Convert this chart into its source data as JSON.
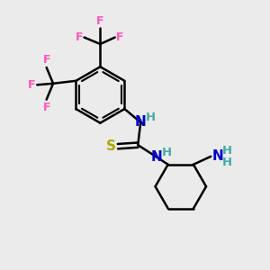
{
  "bg_color": "#ebebeb",
  "bond_color": "#000000",
  "bond_width": 1.8,
  "N_color": "#0000cc",
  "S_color": "#aaaa00",
  "F_color": "#ff55bb",
  "H_color": "#44aaaa",
  "figsize": [
    3.0,
    3.0
  ],
  "dpi": 100,
  "xlim": [
    0,
    10
  ],
  "ylim": [
    0,
    10
  ]
}
